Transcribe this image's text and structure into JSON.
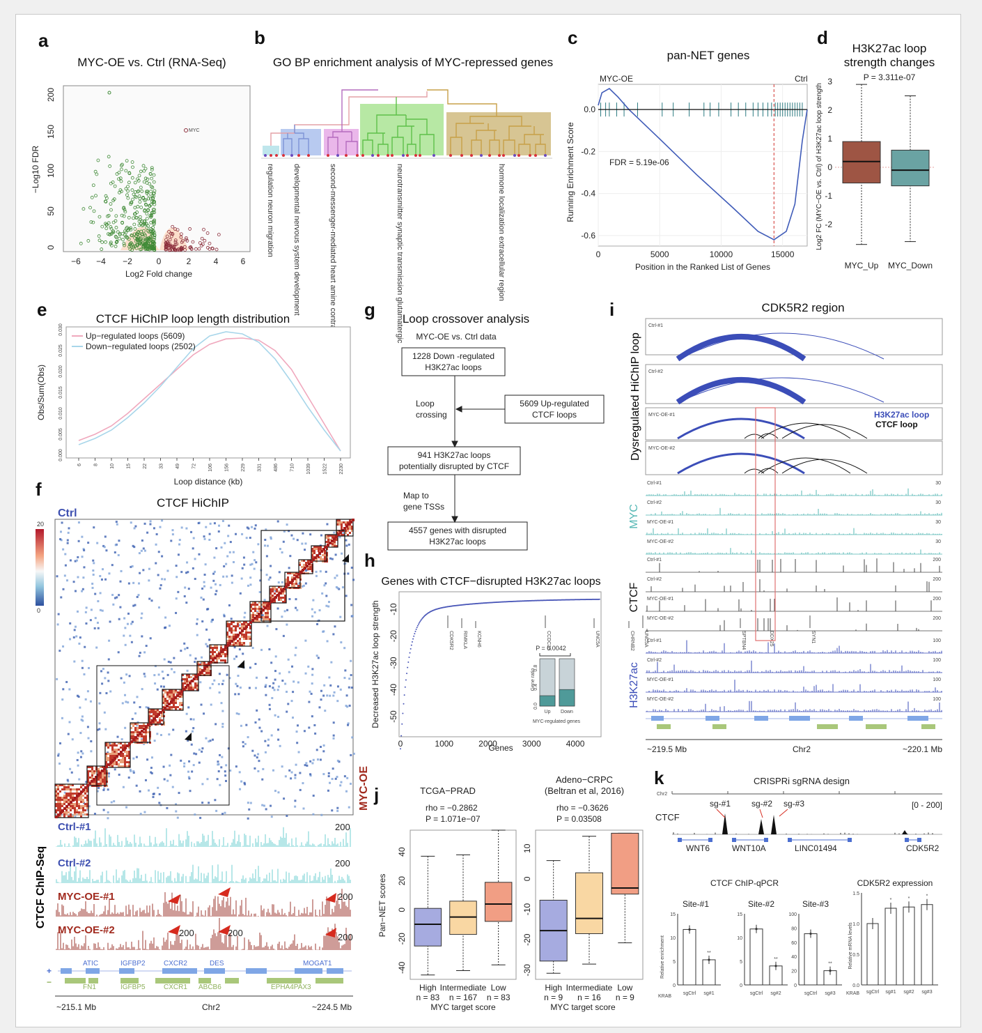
{
  "panels": {
    "a": {
      "letter": "a",
      "title": "MYC-OE vs. Ctrl (RNA-Seq)",
      "xlabel": "Log2 Fold change",
      "ylabel": "−Log10 FDR",
      "annotation": "MYC"
    },
    "b": {
      "letter": "b",
      "title": "GO BP enrichment analysis of MYC-repressed genes",
      "terms": [
        "regulation neuron migration",
        "developmental nervous system development",
        "second-messenger-mediated heart amine contraction",
        "neurotransmitter synaptic transmission glutamatergic",
        "hormone localization extracellular region"
      ]
    },
    "c": {
      "letter": "c",
      "title": "pan-NET genes",
      "left": "MYC-OE",
      "right": "Ctrl",
      "fdr": "FDR = 5.19e-06",
      "xlabel": "Position in the Ranked List of Genes",
      "ylabel": "Running Enrichment Score"
    },
    "d": {
      "letter": "d",
      "title": "H3K27ac loop strength changes",
      "pvalue": "P = 3.311e-07",
      "ylabel": "Log2 FC (MYC−OE vs. Ctrl) of H3K27ac loop strength"
    },
    "e": {
      "letter": "e",
      "title": "CTCF HiChIP loop length distribution",
      "xlabel": "Loop distance (kb)",
      "ylabel": "Obs/Sum(Obs)"
    },
    "f": {
      "letter": "f",
      "title": "CTCF HiChIP",
      "ctrl": "Ctrl",
      "oe": "MYC-OE",
      "scale_max": "20",
      "scale_min": "0",
      "chip_label": "CTCF ChIP-Seq",
      "tracks": [
        {
          "name": "Ctrl-#1",
          "max": "200"
        },
        {
          "name": "Ctrl-#2",
          "max": "200"
        },
        {
          "name": "MYC-OE-#1",
          "max": "200"
        },
        {
          "name": "MYC-OE-#2",
          "max": "200"
        }
      ],
      "extra_200": "200",
      "genes_plus": [
        "ATIC",
        "IGFBP2",
        "CXCR2",
        "DES",
        "MOGAT1"
      ],
      "genes_minus": [
        "FN1",
        "IGFBP5",
        "CXCR1",
        "ABCB6",
        "EPHA4PAX3"
      ],
      "coord_left": "~215.1 Mb",
      "chrom": "Chr2",
      "coord_right": "~224.5 Mb"
    },
    "g": {
      "letter": "g",
      "title": "Loop crossover analysis",
      "subtitle": "MYC-OE vs. Ctrl data",
      "box1": [
        "1228 Down -regulated",
        "H3K27ac loops"
      ],
      "box2": [
        "5609 Up-regulated",
        "CTCF loops"
      ],
      "box3": [
        "941 H3K27ac loops",
        "potentially disrupted by CTCF"
      ],
      "box4": [
        "4557 genes with disrupted",
        "H3K27ac loops"
      ],
      "step1": [
        "Loop",
        "crossing"
      ],
      "step2": [
        "Map to",
        "gene TSSs"
      ]
    },
    "h": {
      "letter": "h",
      "title": "Genes with CTCF−disrupted H3K27ac loops",
      "xlabel": "Genes",
      "ylabel": "Decreased H3K27ac loop strength",
      "genes": [
        "CDK5R2",
        "RIMKLA",
        "KCNH6",
        "CCDC33",
        "UNC5A",
        "CHRNB2",
        "UNC5A",
        "SPTBN4",
        "DDX25",
        "SYN1"
      ],
      "inset": {
        "pvalue": "P = 0.0042",
        "ylabel": "Gene ratio",
        "xlabel": "MYC-regulated genes",
        "up": "Up",
        "down": "Down"
      }
    },
    "i": {
      "letter": "i",
      "title": "CDK5R2 region",
      "loop_label": "Dysregulated HiChIP loop",
      "legend_h3k27ac": "H3K27ac loop",
      "legend_ctcf": "CTCF loop",
      "loop_samples": [
        "Ctrl-#1",
        "Ctrl-#2",
        "MYC-OE-#1",
        "MYC-OE-#2"
      ],
      "groups": [
        {
          "name": "MYC",
          "max": "30"
        },
        {
          "name": "CTCF",
          "max": "200"
        },
        {
          "name": "H3K27ac",
          "max": "100"
        }
      ],
      "coord_left": "~219.5 Mb",
      "chrom": "Chr2",
      "coord_right": "~220.1 Mb"
    },
    "j": {
      "letter": "j",
      "score_label": "MYC target score",
      "ylabel": "Pan−NET scores",
      "left": {
        "title": "TCGA−PRAD",
        "rho": "rho = −0.2862",
        "p": "P = 1.071e−07",
        "groups": [
          "High",
          "Intermediate",
          "Low"
        ],
        "n": [
          "n = 83",
          "n = 167",
          "n = 83"
        ]
      },
      "right": {
        "title": "Adeno−CRPC",
        "subtitle": "(Beltran et al, 2016)",
        "rho": "rho = −0.3626",
        "p": "P = 0.03508",
        "groups": [
          "High",
          "Intermediate",
          "Low"
        ],
        "n": [
          "n = 9",
          "n = 16",
          "n = 9"
        ]
      }
    },
    "k": {
      "letter": "k",
      "title": "CRISPRi sgRNA design",
      "chrom": "Chr2",
      "ctcf": "CTCF",
      "range": "[0 - 200]",
      "sg": [
        "sg-#1",
        "sg-#2",
        "sg-#3"
      ],
      "genes": [
        "WNT6",
        "WNT10A",
        "LINC01494",
        "CDK5R2"
      ],
      "qpcr_title": "CTCF  ChIP-qPCR",
      "expr_title": "CDK5R2 expression",
      "sites": [
        "Site-#1",
        "Site-#2",
        "Site-#3"
      ],
      "enrich_label": "Relative enrichment",
      "mrna_label": "Relative mRNA levels",
      "krab": "KRAB",
      "site_bars": [
        {
          "labels": [
            "sgCtrl",
            "sg#1"
          ],
          "values": [
            11.7,
            5.3
          ]
        },
        {
          "labels": [
            "sgCtrl",
            "sg#2"
          ],
          "values": [
            11.8,
            4.0
          ]
        },
        {
          "labels": [
            "sgCtrl",
            "sg#3"
          ],
          "values": [
            72,
            20
          ]
        }
      ],
      "expr_bars": {
        "labels": [
          "sgCtrl",
          "sg#1",
          "sg#2",
          "sg#3"
        ],
        "values": [
          1.0,
          1.25,
          1.27,
          1.31
        ]
      }
    }
  },
  "chart_data": [
    {
      "panel": "c",
      "type": "line",
      "xlim": [
        0,
        17000
      ],
      "ylim": [
        -0.65,
        0.12
      ],
      "xticks": [
        0,
        5000,
        10000,
        15000
      ],
      "yticks": [
        0.0,
        -0.2,
        -0.4,
        -0.6
      ],
      "x": [
        0,
        300,
        900,
        1600,
        2500,
        5000,
        8000,
        11000,
        13000,
        14300,
        15300,
        16000,
        16600,
        17000
      ],
      "y": [
        0.02,
        0.08,
        0.1,
        0.06,
        0.0,
        -0.14,
        -0.31,
        -0.47,
        -0.58,
        -0.62,
        -0.58,
        -0.45,
        -0.15,
        0.0
      ]
    },
    {
      "panel": "d",
      "type": "box",
      "categories": [
        "MYC_Up",
        "MYC_Down"
      ],
      "ylim": [
        -3,
        3
      ],
      "yticks": [
        3,
        2,
        1,
        0,
        -1,
        -2
      ],
      "boxes": [
        {
          "min": -2.7,
          "q1": -0.55,
          "median": 0.2,
          "q3": 0.9,
          "max": 2.9
        },
        {
          "min": -2.6,
          "q1": -0.65,
          "median": -0.1,
          "q3": 0.6,
          "max": 2.5
        }
      ]
    },
    {
      "panel": "e",
      "type": "line",
      "xlabels": [
        "6",
        "8",
        "10",
        "15",
        "22",
        "33",
        "49",
        "72",
        "106",
        "156",
        "229",
        "331",
        "486",
        "710",
        "1039",
        "1522",
        "2230"
      ],
      "series": [
        {
          "name": "Up−regulated  loops (5609)",
          "color": "#f0a8bd",
          "y": [
            0.0035,
            0.005,
            0.007,
            0.01,
            0.0135,
            0.017,
            0.0205,
            0.024,
            0.0265,
            0.0278,
            0.028,
            0.0275,
            0.025,
            0.0205,
            0.014,
            0.0075,
            0.001
          ]
        },
        {
          "name": "Down−regulated loops (2502)",
          "color": "#a8d6ea",
          "y": [
            0.0025,
            0.004,
            0.006,
            0.009,
            0.0125,
            0.0165,
            0.021,
            0.0255,
            0.0285,
            0.0295,
            0.029,
            0.027,
            0.023,
            0.0175,
            0.0115,
            0.006,
            0.001
          ]
        }
      ],
      "ylim": [
        0,
        0.03
      ],
      "yticks": [
        0.0,
        0.005,
        0.01,
        0.015,
        0.02,
        0.025,
        0.03
      ]
    },
    {
      "panel": "h",
      "type": "scatter",
      "xlim": [
        0,
        4557
      ],
      "ylim": [
        -57,
        -4
      ],
      "xticks": [
        0,
        1000,
        2000,
        3000,
        4000
      ],
      "yticks": [
        -10,
        -20,
        -30,
        -40,
        -50
      ]
    },
    {
      "panel": "h-inset",
      "type": "bar",
      "categories": [
        "Up",
        "Down"
      ],
      "values": [
        0.22,
        0.35
      ],
      "ylim": [
        0,
        1
      ],
      "yticks": [
        0.0,
        0.4,
        0.8
      ]
    },
    {
      "panel": "j-left",
      "type": "box",
      "categories": [
        "High",
        "Intermediate",
        "Low"
      ],
      "ylim": [
        -48,
        55
      ],
      "yticks": [
        40,
        20,
        0,
        -20,
        -40
      ],
      "boxes": [
        {
          "min": -45,
          "q1": -25,
          "median": -10,
          "q3": 1,
          "max": 37
        },
        {
          "min": -42,
          "q1": -17,
          "median": -5,
          "q3": 6,
          "max": 38
        },
        {
          "min": -38,
          "q1": -8,
          "median": 4,
          "q3": 19,
          "max": 55
        }
      ],
      "colors": [
        "#a6abe0",
        "#f9d7a3",
        "#f19e84"
      ]
    },
    {
      "panel": "j-right",
      "type": "box",
      "categories": [
        "High",
        "Intermediate",
        "Low"
      ],
      "ylim": [
        -33,
        16
      ],
      "yticks": [
        10,
        0,
        -10,
        -20,
        -30
      ],
      "boxes": [
        {
          "min": -31,
          "q1": -27,
          "median": -17,
          "q3": -7,
          "max": 6
        },
        {
          "min": -28,
          "q1": -18,
          "median": -13,
          "q3": 2,
          "max": 14
        },
        {
          "min": -21,
          "q1": -5,
          "median": -3,
          "q3": 15,
          "max": 15
        }
      ],
      "colors": [
        "#a6abe0",
        "#f9d7a3",
        "#f19e84"
      ]
    }
  ]
}
